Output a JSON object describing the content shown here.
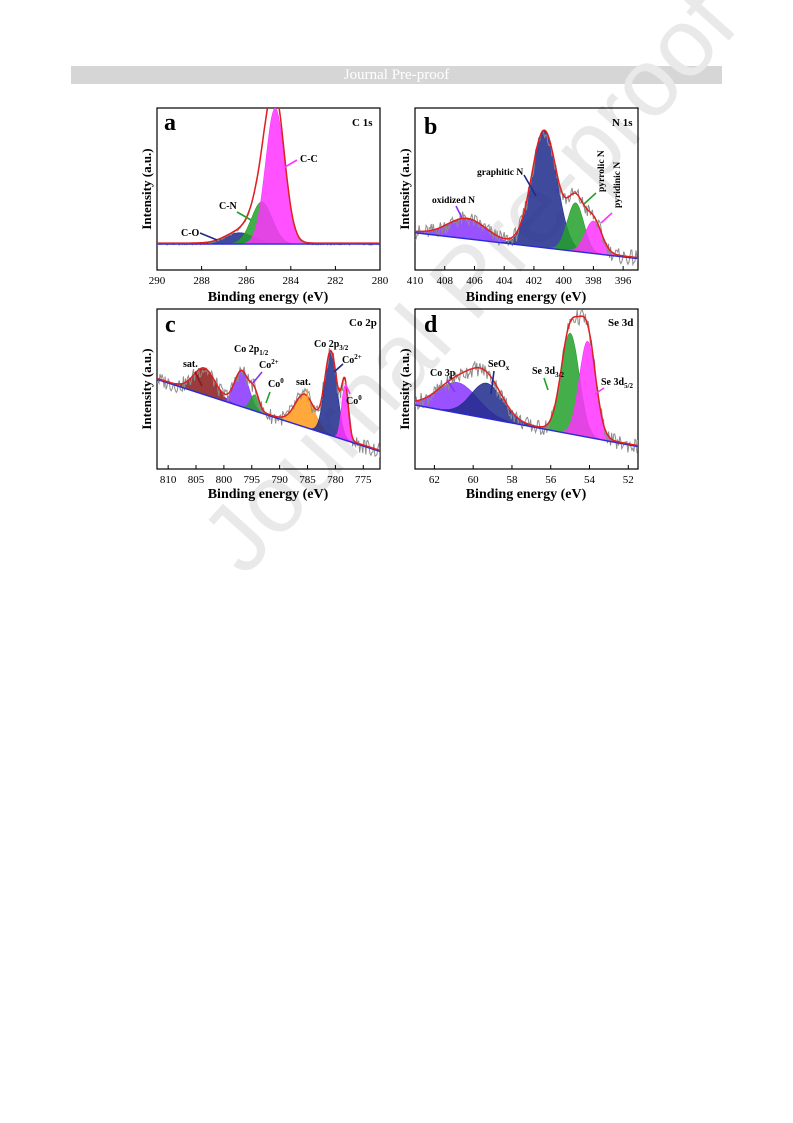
{
  "header": {
    "banner": "Journal Pre-proof"
  },
  "watermark": "Journal Pre-proof",
  "chart_data": [
    {
      "type": "line",
      "panel": "a",
      "title": "C 1s",
      "xlabel": "Binding energy (eV)",
      "ylabel": "Intensity (a.u.)",
      "xlim": [
        290,
        280
      ],
      "xticks": [
        290,
        288,
        286,
        284,
        282,
        280
      ],
      "axis_reversed": true,
      "peaks": [
        {
          "name": "C-O",
          "center": 286.3,
          "fwhm": 1.5,
          "height": 0.07,
          "color": "#1f2a8c"
        },
        {
          "name": "C-N",
          "center": 285.3,
          "fwhm": 1.1,
          "height": 0.26,
          "color": "#23a02a"
        },
        {
          "name": "C-C",
          "center": 284.7,
          "fwhm": 1.0,
          "height": 0.84,
          "color": "#ff33ff"
        }
      ]
    },
    {
      "type": "line",
      "panel": "b",
      "title": "N 1s",
      "xlabel": "Binding energy (eV)",
      "ylabel": "Intensity (a.u.)",
      "xlim": [
        410,
        395
      ],
      "xticks": [
        410,
        408,
        406,
        404,
        402,
        400,
        398,
        396
      ],
      "axis_reversed": true,
      "peaks": [
        {
          "name": "oxidized N",
          "center": 406.5,
          "fwhm": 3.0,
          "height": 0.12,
          "color": "#8833ff"
        },
        {
          "name": "graphitic N",
          "center": 401.3,
          "fwhm": 2.0,
          "height": 0.72,
          "color": "#1f2a8c"
        },
        {
          "name": "pyrrolic N",
          "center": 399.2,
          "fwhm": 1.3,
          "height": 0.3,
          "color": "#23a02a"
        },
        {
          "name": "pyridinic N",
          "center": 398.0,
          "fwhm": 1.3,
          "height": 0.2,
          "color": "#ff33ff"
        }
      ]
    },
    {
      "type": "line",
      "panel": "c",
      "title": "Co 2p",
      "xlabel": "Binding energy (eV)",
      "ylabel": "Intensity (a.u.)",
      "xlim": [
        812,
        772
      ],
      "xticks": [
        810,
        805,
        800,
        795,
        790,
        785,
        780,
        775
      ],
      "axis_reversed": true,
      "labels": [
        "sat.",
        "Co 2p1/2",
        "Co2+",
        "Co0",
        "sat.",
        "Co 2p3/2",
        "Co2+",
        "Co0"
      ],
      "peaks": [
        {
          "name": "sat.",
          "center": 803.5,
          "fwhm": 4.5,
          "height": 0.16,
          "color": "#8a1a1a"
        },
        {
          "name": "Co2+",
          "center": 796.8,
          "fwhm": 3.0,
          "height": 0.22,
          "color": "#8833ff"
        },
        {
          "name": "Co0",
          "center": 794.5,
          "fwhm": 1.8,
          "height": 0.1,
          "color": "#23a02a"
        },
        {
          "name": "sat.",
          "center": 785.5,
          "fwhm": 4.0,
          "height": 0.2,
          "color": "#ff9a1a"
        },
        {
          "name": "Co2+",
          "center": 780.8,
          "fwhm": 2.6,
          "height": 0.52,
          "color": "#1f2a8c"
        },
        {
          "name": "Co0",
          "center": 778.3,
          "fwhm": 1.4,
          "height": 0.34,
          "color": "#ff33ff"
        }
      ]
    },
    {
      "type": "line",
      "panel": "d",
      "title": "Se 3d",
      "xlabel": "Binding energy (eV)",
      "ylabel": "Intensity (a.u.)",
      "xlim": [
        63,
        51.5
      ],
      "xticks": [
        62,
        60,
        58,
        56,
        54,
        52
      ],
      "axis_reversed": true,
      "labels": [
        "Co 3p",
        "SeOx",
        "Se 3d3/2",
        "Se 3d5/2"
      ],
      "peaks": [
        {
          "name": "Co 3p",
          "center": 60.8,
          "fwhm": 2.4,
          "height": 0.19,
          "color": "#8833ff"
        },
        {
          "name": "SeOx",
          "center": 59.3,
          "fwhm": 1.9,
          "height": 0.22,
          "color": "#1f2a8c"
        },
        {
          "name": "Se 3d3/2",
          "center": 55.0,
          "fwhm": 1.1,
          "height": 0.63,
          "color": "#23a02a"
        },
        {
          "name": "Se 3d5/2",
          "center": 54.1,
          "fwhm": 1.0,
          "height": 0.6,
          "color": "#ff33ff"
        }
      ]
    }
  ]
}
